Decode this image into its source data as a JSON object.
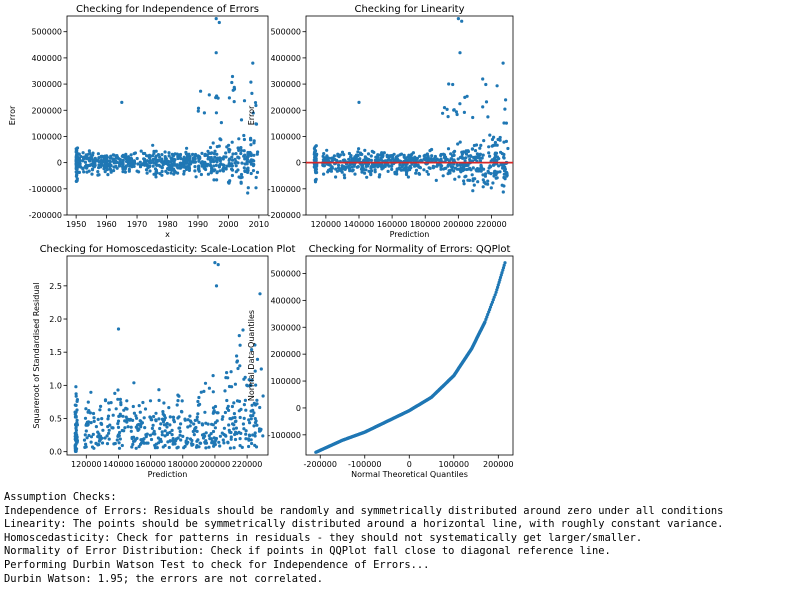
{
  "chart_data": [
    {
      "type": "scatter",
      "title": "Checking for Independence of Errors",
      "xlabel": "x",
      "ylabel": "Error",
      "xlim": [
        1947,
        2013
      ],
      "ylim": [
        -200000,
        560000
      ],
      "xticks": [
        1950,
        1960,
        1970,
        1980,
        1990,
        2000,
        2010
      ],
      "yticks": [
        -200000,
        -100000,
        0,
        100000,
        200000,
        300000,
        400000,
        500000
      ],
      "point_color": "#1f77b4",
      "grid": false,
      "points_summary": "~1100 residuals vs year built; dense band between -100000 and 100000, spread increasing after 1990, outliers up to ~550000 near 1996",
      "outliers": [
        [
          1996,
          550000
        ],
        [
          1997,
          535000
        ],
        [
          1996,
          420000
        ],
        [
          2008,
          380000
        ],
        [
          1965,
          230000
        ]
      ]
    },
    {
      "type": "scatter",
      "title": "Checking for Linearity",
      "xlabel": "Prediction",
      "ylabel": "Error",
      "xlim": [
        108000,
        233000
      ],
      "ylim": [
        -200000,
        560000
      ],
      "xticks": [
        120000,
        140000,
        160000,
        180000,
        200000,
        220000
      ],
      "yticks": [
        -200000,
        -100000,
        0,
        100000,
        200000,
        300000,
        400000,
        500000
      ],
      "reference_line": {
        "y": 0,
        "color": "#d62728"
      },
      "point_color": "#1f77b4",
      "grid": false,
      "points_summary": "residuals vs predicted price; vertical cluster near 113000; spread increases above 190000; outliers ~550000 near 200000",
      "outliers": [
        [
          200000,
          550000
        ],
        [
          202000,
          540000
        ],
        [
          201000,
          420000
        ],
        [
          227000,
          380000
        ],
        [
          140000,
          230000
        ]
      ]
    },
    {
      "type": "scatter",
      "title": "Checking for Homoscedasticity: Scale-Location Plot",
      "xlabel": "Prediction",
      "ylabel": "Squareroot of Standardised Residual",
      "xlim": [
        108000,
        233000
      ],
      "ylim": [
        -0.05,
        2.95
      ],
      "xticks": [
        120000,
        140000,
        160000,
        180000,
        200000,
        220000
      ],
      "yticks": [
        0.0,
        0.5,
        1.0,
        1.5,
        2.0,
        2.5
      ],
      "point_color": "#1f77b4",
      "grid": false,
      "points_summary": "sqrt |standardised residual| vs prediction; values between 0 and ~1.5 at low predictions, rising to ~2.3 at high predictions; outliers ~2.85 near 200000",
      "outliers": [
        [
          200000,
          2.85
        ],
        [
          202000,
          2.82
        ],
        [
          201000,
          2.5
        ],
        [
          140000,
          1.85
        ],
        [
          228000,
          2.38
        ]
      ]
    },
    {
      "type": "scatter",
      "title": "Checking for Normality of Errors: QQPlot",
      "xlabel": "Normal Theoretical Quantiles",
      "ylabel": "Normal Data Quantiles",
      "xlim": [
        -232000,
        233000
      ],
      "ylim": [
        -175000,
        565000
      ],
      "xticks": [
        -200000,
        -100000,
        0,
        100000,
        200000
      ],
      "yticks": [
        -100000,
        0,
        100000,
        200000,
        300000,
        400000,
        500000
      ],
      "point_color": "#1f77b4",
      "grid": false,
      "points_summary": "ordered residuals vs normal quantiles; roughly linear from (-210000,-165000) to (70000,80000), then curving upward (right skew) to (215000,540000)",
      "anchor_points": [
        [
          -210000,
          -165000
        ],
        [
          -150000,
          -120000
        ],
        [
          -100000,
          -90000
        ],
        [
          -50000,
          -50000
        ],
        [
          0,
          -10000
        ],
        [
          50000,
          40000
        ],
        [
          100000,
          120000
        ],
        [
          140000,
          220000
        ],
        [
          170000,
          320000
        ],
        [
          195000,
          430000
        ],
        [
          215000,
          540000
        ]
      ]
    }
  ],
  "output": {
    "lines": [
      "Assumption Checks:",
      "Independence of Errors: Residuals should be randomly and symmetrically distributed around zero under all conditions",
      "Linearity: The points should be symmetrically distributed around a horizontal line, with roughly constant variance.",
      "Homoscedasticity: Check for patterns in residuals - they should not systematically get larger/smaller.",
      "Normality of Error Distribution: Check if points in QQPlot fall close to diagonal reference line.",
      "Performing Durbin Watson Test to check for Independence of Errors...",
      "Durbin Watson: 1.95; the errors are not correlated."
    ]
  }
}
